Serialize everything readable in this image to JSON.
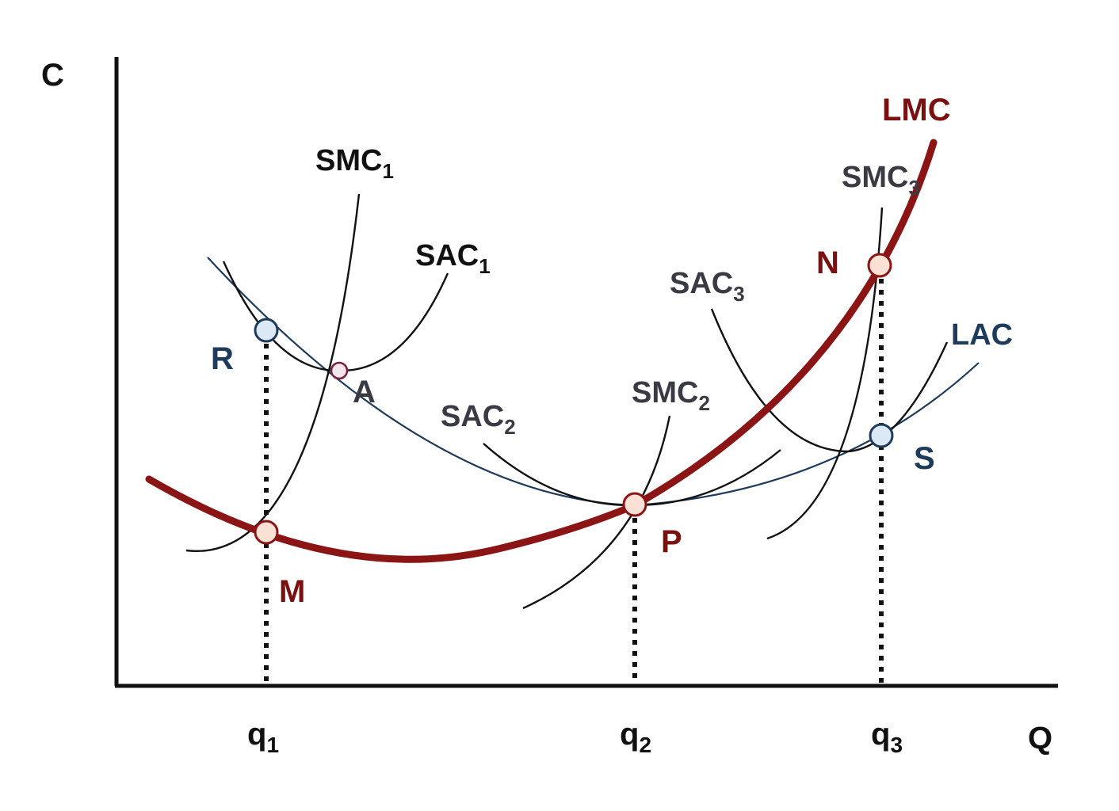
{
  "axes": {
    "y_label": "C",
    "x_label": "Q",
    "ticks": [
      {
        "base": "q",
        "sub": "1"
      },
      {
        "base": "q",
        "sub": "2"
      },
      {
        "base": "q",
        "sub": "3"
      }
    ]
  },
  "curves": {
    "lmc": "LMC",
    "lac": "LAC",
    "smc1": {
      "base": "SMC",
      "sub": "1"
    },
    "smc2": {
      "base": "SMC",
      "sub": "2"
    },
    "smc3": {
      "base": "SMC",
      "sub": "3"
    },
    "sac1": {
      "base": "SAC",
      "sub": "1"
    },
    "sac2": {
      "base": "SAC",
      "sub": "2"
    },
    "sac3": {
      "base": "SAC",
      "sub": "3"
    }
  },
  "points": {
    "R": "R",
    "A": "A",
    "M": "M",
    "P": "P",
    "N": "N",
    "S": "S"
  },
  "colors": {
    "lmc": "#8b1414",
    "lac": "#1f3b5c",
    "red_point_fill": "#fbe0d6",
    "blue_point_fill": "#dbe9f6",
    "label_blue": "#1f3b5c",
    "label_red": "#7a1010",
    "label_dark": "#3a3a44"
  }
}
